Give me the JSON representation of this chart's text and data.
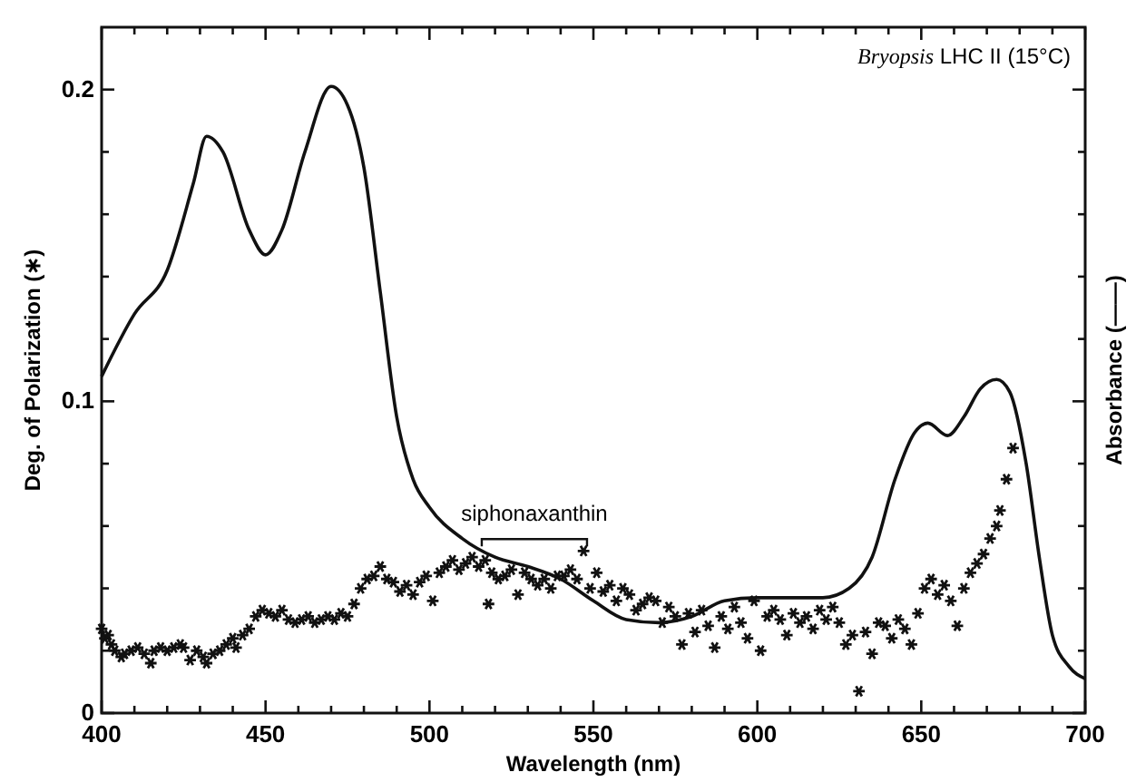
{
  "chart_data": {
    "type": "scatter",
    "title": "Bryopsis LHC II (15°C)",
    "xlabel": "Wavelength (nm)",
    "ylabel": "Deg. of Polarization (∗)",
    "y2label": "Absorbance (——)",
    "annotations": [
      "siphonaxanthin"
    ],
    "xlim": [
      400,
      700
    ],
    "ylim": [
      0,
      0.22
    ],
    "xticks": [
      400,
      {
        "value": 410,
        "label": null
      },
      {
        "value": 420,
        "label": null
      },
      {
        "value": 430,
        "label": null
      },
      {
        "value": 440,
        "label": null
      },
      450,
      {
        "value": 460,
        "label": null
      },
      {
        "value": 470,
        "label": null
      },
      {
        "value": 480,
        "label": null
      },
      {
        "value": 490,
        "label": null
      },
      500,
      {
        "value": 510,
        "label": null
      },
      {
        "value": 520,
        "label": null
      },
      {
        "value": 530,
        "label": null
      },
      {
        "value": 540,
        "label": null
      },
      550,
      {
        "value": 560,
        "label": null
      },
      {
        "value": 570,
        "label": null
      },
      {
        "value": 580,
        "label": null
      },
      {
        "value": 590,
        "label": null
      },
      600,
      {
        "value": 610,
        "label": null
      },
      {
        "value": 620,
        "label": null
      },
      {
        "value": 630,
        "label": null
      },
      {
        "value": 640,
        "label": null
      },
      650,
      {
        "value": 660,
        "label": null
      },
      {
        "value": 670,
        "label": null
      },
      {
        "value": 680,
        "label": null
      },
      {
        "value": 690,
        "label": null
      },
      700
    ],
    "yticks": [
      0,
      {
        "value": 0.02,
        "label": null
      },
      {
        "value": 0.04,
        "label": null
      },
      {
        "value": 0.06,
        "label": null
      },
      {
        "value": 0.08,
        "label": null
      },
      0.1,
      {
        "value": 0.12,
        "label": null
      },
      {
        "value": 0.14,
        "label": null
      },
      {
        "value": 0.16,
        "label": null
      },
      {
        "value": 0.18,
        "label": null
      },
      0.2
    ],
    "grid": false,
    "series": [
      {
        "color": "#111111",
        "marker": "cross",
        "x": [
          400,
          401,
          402,
          403,
          404,
          406,
          407,
          409,
          411,
          413,
          415,
          416,
          418,
          420,
          422,
          424,
          425,
          427,
          429,
          431,
          432,
          434,
          436,
          438,
          440,
          441,
          443,
          445,
          447,
          449,
          451,
          453,
          455,
          457,
          459,
          461,
          463,
          465,
          467,
          469,
          471,
          473,
          475,
          477,
          479,
          481,
          483,
          485,
          487,
          489,
          491,
          493,
          495,
          497,
          499,
          501,
          503,
          505,
          507,
          509,
          511,
          513,
          515,
          517,
          518,
          519,
          521,
          523,
          525,
          527,
          529,
          531,
          533,
          535,
          537,
          539,
          541,
          543,
          545,
          547,
          549,
          551,
          553,
          555,
          557,
          559,
          561,
          563,
          565,
          567,
          569,
          571,
          573,
          575,
          577,
          579,
          581,
          583,
          585,
          587,
          589,
          591,
          593,
          595,
          597,
          599,
          601,
          603,
          605,
          607,
          609,
          611,
          613,
          615,
          617,
          619,
          621,
          623,
          625,
          627,
          629,
          631,
          633,
          635,
          637,
          639,
          641,
          643,
          645,
          647,
          649,
          651,
          653,
          655,
          657,
          659,
          661,
          663,
          665,
          667,
          669,
          671,
          673,
          674,
          676,
          678
        ],
        "values": [
          0.027,
          0.024,
          0.025,
          0.022,
          0.02,
          0.018,
          0.019,
          0.02,
          0.021,
          0.019,
          0.016,
          0.02,
          0.021,
          0.02,
          0.021,
          0.022,
          0.021,
          0.017,
          0.02,
          0.018,
          0.016,
          0.019,
          0.02,
          0.022,
          0.024,
          0.021,
          0.025,
          0.027,
          0.031,
          0.033,
          0.032,
          0.031,
          0.033,
          0.03,
          0.029,
          0.03,
          0.031,
          0.029,
          0.03,
          0.031,
          0.03,
          0.032,
          0.031,
          0.035,
          0.04,
          0.043,
          0.044,
          0.047,
          0.043,
          0.042,
          0.039,
          0.041,
          0.038,
          0.042,
          0.044,
          0.036,
          0.045,
          0.047,
          0.049,
          0.046,
          0.048,
          0.05,
          0.047,
          0.049,
          0.035,
          0.045,
          0.043,
          0.044,
          0.046,
          0.038,
          0.045,
          0.043,
          0.041,
          0.043,
          0.04,
          0.044,
          0.044,
          0.046,
          0.043,
          0.052,
          0.04,
          0.045,
          0.039,
          0.041,
          0.036,
          0.04,
          0.038,
          0.033,
          0.035,
          0.037,
          0.036,
          0.029,
          0.034,
          0.031,
          0.022,
          0.032,
          0.026,
          0.033,
          0.028,
          0.021,
          0.031,
          0.027,
          0.034,
          0.029,
          0.024,
          0.036,
          0.02,
          0.031,
          0.033,
          0.03,
          0.025,
          0.032,
          0.029,
          0.031,
          0.027,
          0.033,
          0.03,
          0.034,
          0.029,
          0.022,
          0.025,
          0.007,
          0.026,
          0.019,
          0.029,
          0.028,
          0.024,
          0.03,
          0.027,
          0.022,
          0.032,
          0.04,
          0.043,
          0.038,
          0.041,
          0.036,
          0.028,
          0.04,
          0.045,
          0.048,
          0.051,
          0.056,
          0.06,
          0.065,
          0.075,
          0.085
        ]
      },
      {
        "type": "line",
        "color": "#111111",
        "line_style": "solid",
        "marker": "none",
        "x": [
          400,
          410,
          420,
          428,
          432,
          437,
          445,
          450,
          455,
          462,
          470,
          475,
          480,
          485,
          490,
          495,
          500,
          510,
          520,
          530,
          540,
          550,
          560,
          570,
          580,
          590,
          600,
          610,
          620,
          628,
          635,
          642,
          648,
          652,
          658,
          663,
          668,
          673,
          677,
          682,
          686,
          690,
          695,
          700
        ],
        "values": [
          0.108,
          0.128,
          0.142,
          0.17,
          0.185,
          0.18,
          0.155,
          0.147,
          0.155,
          0.18,
          0.201,
          0.195,
          0.175,
          0.135,
          0.095,
          0.075,
          0.066,
          0.056,
          0.05,
          0.047,
          0.043,
          0.036,
          0.03,
          0.029,
          0.031,
          0.036,
          0.037,
          0.037,
          0.037,
          0.04,
          0.05,
          0.075,
          0.09,
          0.093,
          0.089,
          0.095,
          0.104,
          0.107,
          0.103,
          0.08,
          0.05,
          0.025,
          0.015,
          0.011
        ]
      }
    ]
  }
}
